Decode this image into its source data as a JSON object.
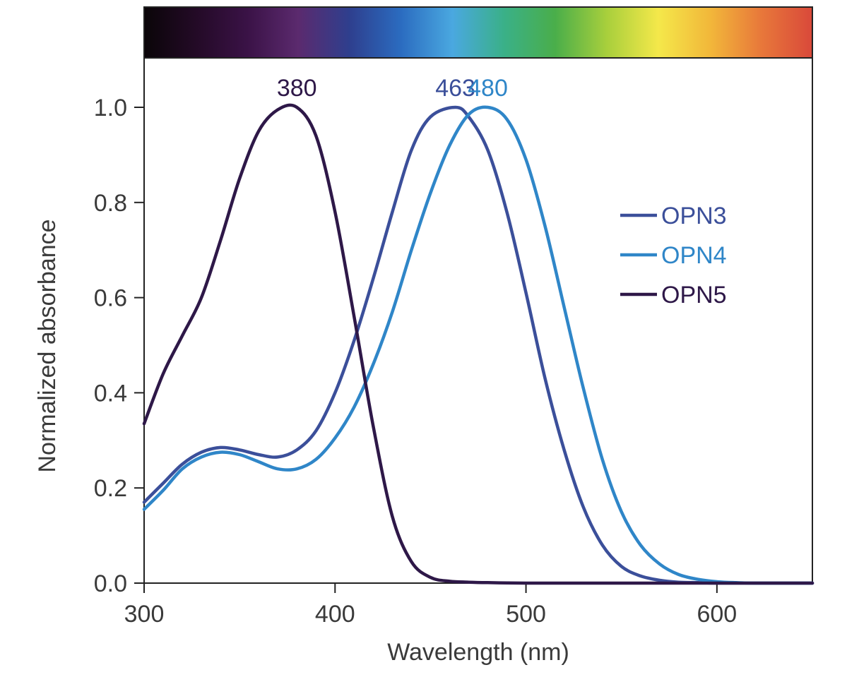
{
  "chart_data": {
    "type": "line",
    "title": "",
    "xlabel": "Wavelength (nm)",
    "ylabel": "Normalized absorbance",
    "xlim": [
      300,
      650
    ],
    "ylim": [
      0,
      1.1
    ],
    "x_ticks": [
      300,
      400,
      500,
      600
    ],
    "x_tick_labels": [
      "300",
      "400",
      "500",
      "600"
    ],
    "y_ticks": [
      0,
      0.2,
      0.4,
      0.6,
      0.8,
      1.0
    ],
    "y_tick_labels": [
      "0.0",
      "0.2",
      "0.4",
      "0.6",
      "0.8",
      "1.0"
    ],
    "grid": false,
    "legend_position": "right",
    "spectrum_bar_colors": [
      "#0a0508",
      "#230a26",
      "#3a1246",
      "#5b2a6e",
      "#2e3f8e",
      "#2b6cc0",
      "#4aa8e0",
      "#3ab088",
      "#4aae4a",
      "#a8cf3c",
      "#f4e84a",
      "#f2b83a",
      "#e8783a",
      "#d9493a"
    ],
    "series": [
      {
        "name": "OPN3",
        "color": "#3b4f9a",
        "peak_x": 463,
        "peak_label": "463",
        "x": [
          300,
          310,
          320,
          330,
          340,
          350,
          360,
          370,
          380,
          390,
          400,
          410,
          420,
          430,
          440,
          450,
          463,
          470,
          480,
          490,
          500,
          510,
          520,
          530,
          540,
          550,
          560,
          570,
          580,
          590,
          600,
          620,
          650
        ],
        "y": [
          0.17,
          0.21,
          0.25,
          0.275,
          0.285,
          0.28,
          0.27,
          0.265,
          0.28,
          0.32,
          0.4,
          0.51,
          0.64,
          0.78,
          0.91,
          0.98,
          1.0,
          0.98,
          0.91,
          0.78,
          0.61,
          0.43,
          0.28,
          0.16,
          0.08,
          0.035,
          0.015,
          0.006,
          0.002,
          0.001,
          0.0,
          0.0,
          0.0
        ]
      },
      {
        "name": "OPN4",
        "color": "#2f86c8",
        "peak_x": 480,
        "peak_label": "480",
        "x": [
          300,
          310,
          320,
          330,
          340,
          350,
          360,
          370,
          380,
          390,
          400,
          410,
          420,
          430,
          440,
          450,
          460,
          470,
          480,
          490,
          500,
          510,
          520,
          530,
          540,
          550,
          560,
          570,
          580,
          590,
          600,
          610,
          620,
          650
        ],
        "y": [
          0.155,
          0.195,
          0.24,
          0.265,
          0.275,
          0.27,
          0.255,
          0.24,
          0.24,
          0.26,
          0.305,
          0.37,
          0.46,
          0.57,
          0.7,
          0.82,
          0.92,
          0.985,
          1.0,
          0.975,
          0.89,
          0.75,
          0.58,
          0.41,
          0.26,
          0.15,
          0.08,
          0.04,
          0.018,
          0.008,
          0.003,
          0.001,
          0.0,
          0.0
        ]
      },
      {
        "name": "OPN5",
        "color": "#2e1848",
        "peak_x": 380,
        "peak_label": "380",
        "x": [
          300,
          310,
          320,
          330,
          340,
          350,
          360,
          370,
          380,
          390,
          400,
          410,
          420,
          430,
          440,
          450,
          460,
          470,
          480,
          500,
          550,
          600,
          650
        ],
        "y": [
          0.335,
          0.44,
          0.52,
          0.6,
          0.72,
          0.85,
          0.95,
          0.995,
          1.0,
          0.94,
          0.78,
          0.56,
          0.33,
          0.14,
          0.045,
          0.012,
          0.004,
          0.002,
          0.001,
          0.0,
          0.0,
          0.0,
          0.0
        ]
      }
    ]
  }
}
